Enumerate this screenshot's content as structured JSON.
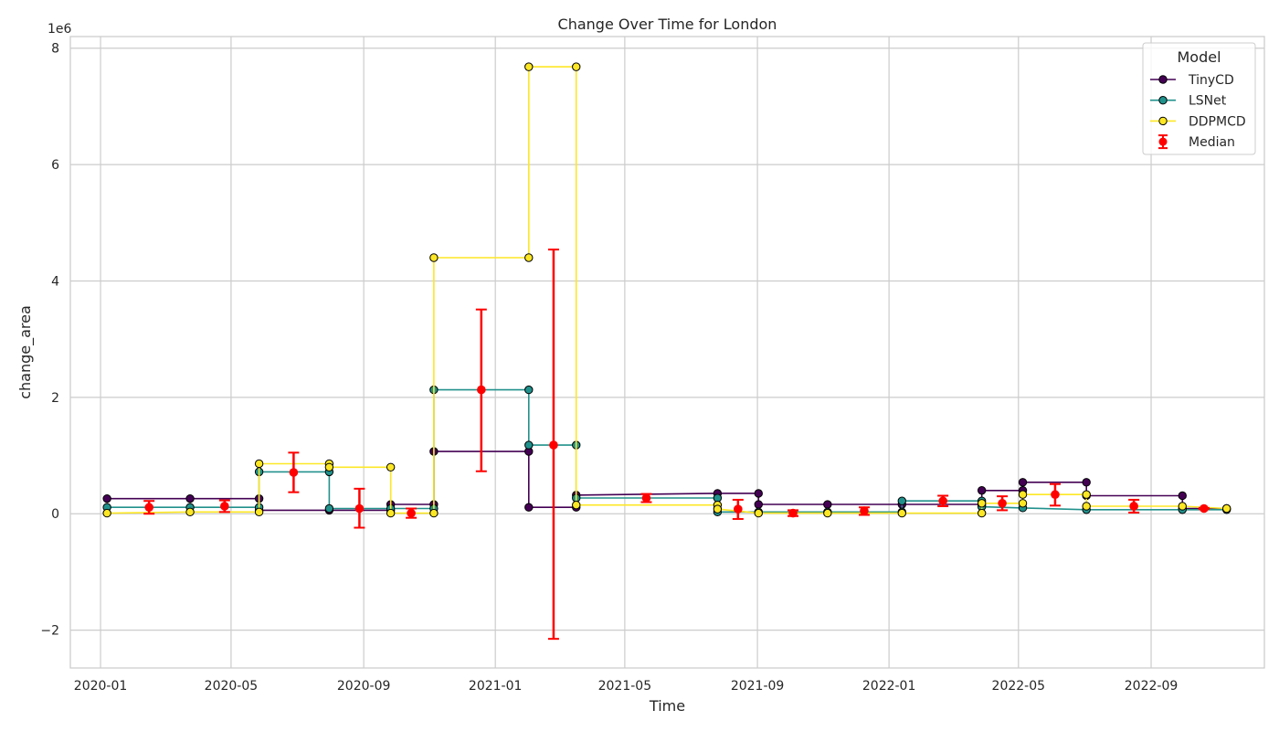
{
  "chart_data": {
    "type": "line",
    "title": "Change Over Time for London",
    "xlabel": "Time",
    "ylabel": "change_area",
    "y_offset_label": "1e6",
    "xlim": [
      "2019-12-04",
      "2022-12-15"
    ],
    "ylim": [
      -2650000,
      8200000
    ],
    "x_ticks": [
      "2020-01-01",
      "2020-05-01",
      "2020-09-01",
      "2021-01-01",
      "2021-05-01",
      "2021-09-01",
      "2022-01-01",
      "2022-05-01",
      "2022-09-01"
    ],
    "x_tick_labels": [
      "2020-01",
      "2020-05",
      "2020-09",
      "2021-01",
      "2021-05",
      "2021-09",
      "2022-01",
      "2022-05",
      "2022-09"
    ],
    "y_ticks": [
      -2000000,
      0,
      2000000,
      4000000,
      6000000,
      8000000
    ],
    "y_tick_labels": [
      "−2",
      "0",
      "2",
      "4",
      "6",
      "8"
    ],
    "grid": true,
    "legend": {
      "title": "Model",
      "position": "top-right"
    },
    "series": [
      {
        "name": "TinyCD",
        "color": "#440154",
        "points": [
          [
            "2020-01-07",
            260000
          ],
          [
            "2020-03-24",
            260000
          ],
          [
            "2020-05-27",
            260000
          ],
          [
            "2020-05-27",
            60000
          ],
          [
            "2020-07-31",
            60000
          ],
          [
            "2020-09-26",
            60000
          ],
          [
            "2020-09-26",
            160000
          ],
          [
            "2020-11-05",
            160000
          ],
          [
            "2020-11-05",
            1070000
          ],
          [
            "2021-02-01",
            1070000
          ],
          [
            "2021-02-01",
            110000
          ],
          [
            "2021-03-17",
            110000
          ],
          [
            "2021-03-17",
            320000
          ],
          [
            "2021-07-26",
            350000
          ],
          [
            "2021-09-02",
            350000
          ],
          [
            "2021-09-02",
            160000
          ],
          [
            "2021-11-05",
            160000
          ],
          [
            "2022-01-13",
            160000
          ],
          [
            "2022-03-28",
            160000
          ],
          [
            "2022-03-28",
            400000
          ],
          [
            "2022-05-05",
            400000
          ],
          [
            "2022-05-05",
            540000
          ],
          [
            "2022-07-03",
            540000
          ],
          [
            "2022-07-03",
            310000
          ],
          [
            "2022-09-30",
            310000
          ],
          [
            "2022-09-30",
            90000
          ],
          [
            "2022-11-10",
            90000
          ]
        ]
      },
      {
        "name": "LSNet",
        "color": "#21918c",
        "points": [
          [
            "2020-01-07",
            110000
          ],
          [
            "2020-03-24",
            110000
          ],
          [
            "2020-05-27",
            110000
          ],
          [
            "2020-05-27",
            720000
          ],
          [
            "2020-07-31",
            720000
          ],
          [
            "2020-07-31",
            90000
          ],
          [
            "2020-09-26",
            90000
          ],
          [
            "2020-11-05",
            90000
          ],
          [
            "2020-11-05",
            2130000
          ],
          [
            "2021-02-01",
            2130000
          ],
          [
            "2021-02-01",
            1180000
          ],
          [
            "2021-03-17",
            1180000
          ],
          [
            "2021-03-17",
            270000
          ],
          [
            "2021-07-26",
            270000
          ],
          [
            "2021-07-26",
            30000
          ],
          [
            "2021-09-02",
            30000
          ],
          [
            "2021-11-05",
            30000
          ],
          [
            "2022-01-13",
            30000
          ],
          [
            "2022-01-13",
            220000
          ],
          [
            "2022-03-28",
            220000
          ],
          [
            "2022-03-28",
            120000
          ],
          [
            "2022-05-05",
            100000
          ],
          [
            "2022-07-03",
            70000
          ],
          [
            "2022-09-30",
            70000
          ],
          [
            "2022-11-10",
            70000
          ]
        ]
      },
      {
        "name": "DDPMCD",
        "color": "#fde725",
        "points": [
          [
            "2020-01-07",
            10000
          ],
          [
            "2020-03-24",
            30000
          ],
          [
            "2020-05-27",
            30000
          ],
          [
            "2020-05-27",
            860000
          ],
          [
            "2020-07-31",
            860000
          ],
          [
            "2020-07-31",
            800000
          ],
          [
            "2020-09-26",
            800000
          ],
          [
            "2020-09-26",
            10000
          ],
          [
            "2020-11-05",
            10000
          ],
          [
            "2020-11-05",
            4400000
          ],
          [
            "2021-02-01",
            4400000
          ],
          [
            "2021-02-01",
            7680000
          ],
          [
            "2021-03-17",
            7680000
          ],
          [
            "2021-03-17",
            150000
          ],
          [
            "2021-07-26",
            150000
          ],
          [
            "2021-07-26",
            80000
          ],
          [
            "2021-09-02",
            10000
          ],
          [
            "2021-11-05",
            10000
          ],
          [
            "2022-01-13",
            10000
          ],
          [
            "2022-03-28",
            10000
          ],
          [
            "2022-03-28",
            180000
          ],
          [
            "2022-05-05",
            180000
          ],
          [
            "2022-05-05",
            330000
          ],
          [
            "2022-07-03",
            330000
          ],
          [
            "2022-07-03",
            130000
          ],
          [
            "2022-09-30",
            130000
          ],
          [
            "2022-11-10",
            90000
          ]
        ]
      }
    ],
    "median": {
      "name": "Median",
      "color": "#ff0000",
      "points": [
        {
          "x": "2020-02-15",
          "y": 110000,
          "low": 0,
          "high": 220000
        },
        {
          "x": "2020-04-25",
          "y": 130000,
          "low": 30000,
          "high": 230000
        },
        {
          "x": "2020-06-28",
          "y": 710000,
          "low": 370000,
          "high": 1050000
        },
        {
          "x": "2020-08-28",
          "y": 90000,
          "low": -240000,
          "high": 430000
        },
        {
          "x": "2020-10-15",
          "y": 10000,
          "low": -70000,
          "high": 90000
        },
        {
          "x": "2020-12-19",
          "y": 2130000,
          "low": 730000,
          "high": 3510000
        },
        {
          "x": "2021-02-24",
          "y": 1180000,
          "low": -2150000,
          "high": 4540000
        },
        {
          "x": "2021-05-21",
          "y": 270000,
          "low": 200000,
          "high": 340000
        },
        {
          "x": "2021-08-14",
          "y": 80000,
          "low": -90000,
          "high": 240000
        },
        {
          "x": "2021-10-04",
          "y": 10000,
          "low": -40000,
          "high": 60000
        },
        {
          "x": "2021-12-09",
          "y": 50000,
          "low": -20000,
          "high": 110000
        },
        {
          "x": "2022-02-20",
          "y": 220000,
          "low": 130000,
          "high": 310000
        },
        {
          "x": "2022-04-16",
          "y": 180000,
          "low": 60000,
          "high": 300000
        },
        {
          "x": "2022-06-04",
          "y": 330000,
          "low": 140000,
          "high": 510000
        },
        {
          "x": "2022-08-16",
          "y": 130000,
          "low": 20000,
          "high": 240000
        },
        {
          "x": "2022-10-20",
          "y": 90000,
          "low": 80000,
          "high": 100000
        }
      ]
    }
  }
}
